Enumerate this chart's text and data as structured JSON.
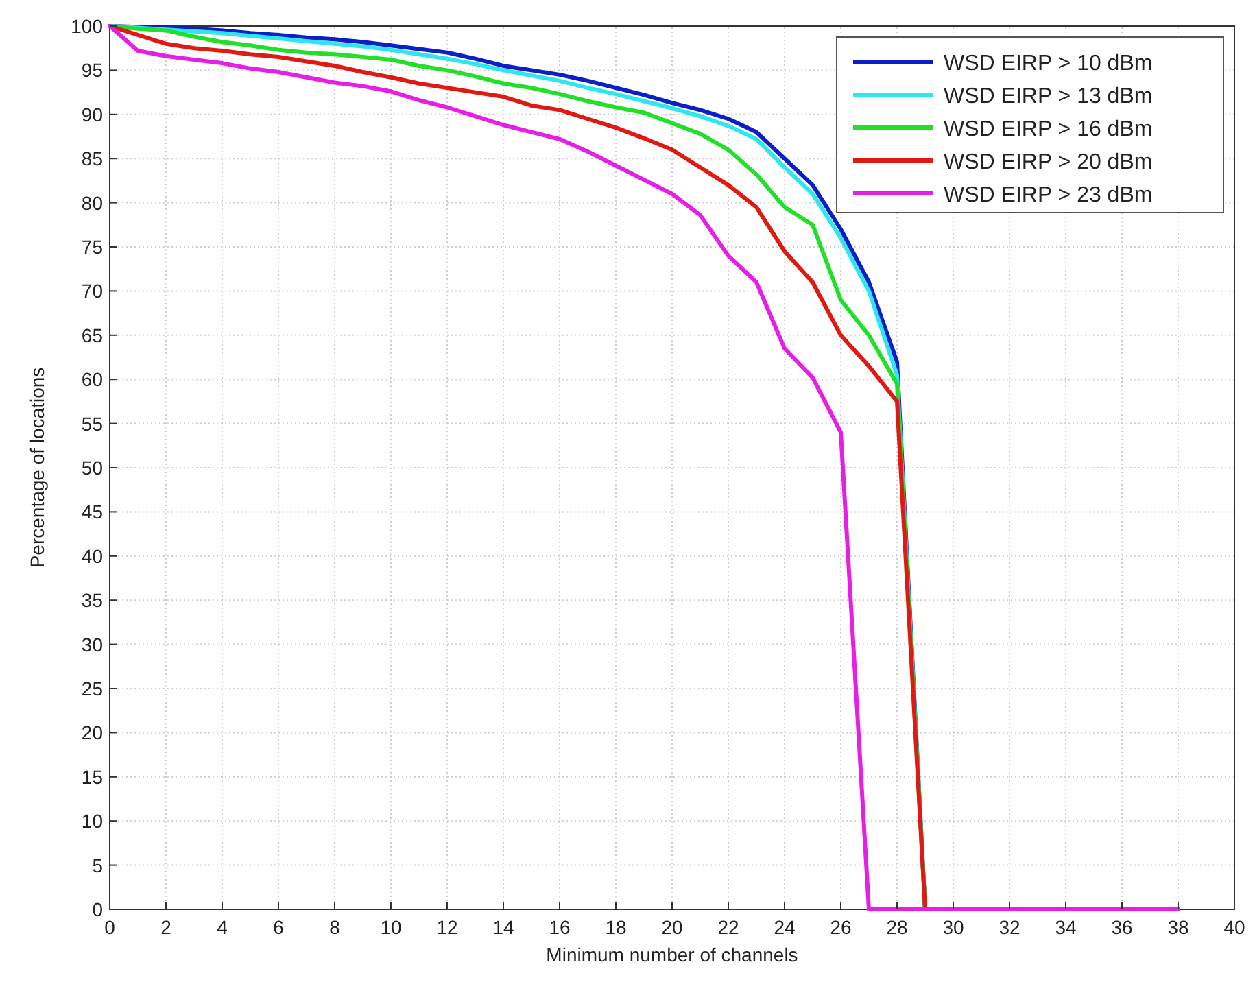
{
  "chart_data": {
    "type": "line",
    "xlabel": "Minimum number of channels",
    "ylabel": "Percentage of locations",
    "xlim": [
      0,
      40
    ],
    "ylim": [
      0,
      100
    ],
    "xticks": [
      0,
      2,
      4,
      6,
      8,
      10,
      12,
      14,
      16,
      18,
      20,
      22,
      24,
      26,
      28,
      30,
      32,
      34,
      36,
      38,
      40
    ],
    "yticks": [
      0,
      5,
      10,
      15,
      20,
      25,
      30,
      35,
      40,
      45,
      50,
      55,
      60,
      65,
      70,
      75,
      80,
      85,
      90,
      95,
      100
    ],
    "grid": true,
    "legend": "top right",
    "marker": "none",
    "line_style": "solid",
    "series": [
      {
        "name": "WSD EIRP > 10 dBm",
        "color": "#0a1fc8",
        "x": [
          0,
          1,
          2,
          3,
          4,
          5,
          6,
          7,
          8,
          9,
          10,
          11,
          12,
          13,
          14,
          15,
          16,
          17,
          18,
          19,
          20,
          21,
          22,
          23,
          24,
          25,
          26,
          27,
          28,
          29,
          38
        ],
        "values": [
          100,
          99.9,
          99.8,
          99.7,
          99.5,
          99.2,
          99,
          98.7,
          98.5,
          98.2,
          97.8,
          97.4,
          97,
          96.3,
          95.5,
          95,
          94.5,
          93.8,
          93,
          92.2,
          91.3,
          90.5,
          89.5,
          88,
          85,
          82,
          77,
          71,
          62,
          0,
          0
        ]
      },
      {
        "name": "WSD EIRP > 13 dBm",
        "color": "#2ee6f0",
        "x": [
          0,
          1,
          2,
          3,
          4,
          5,
          6,
          7,
          8,
          9,
          10,
          11,
          12,
          13,
          14,
          15,
          16,
          17,
          18,
          19,
          20,
          21,
          22,
          23,
          24,
          25,
          26,
          27,
          28,
          29,
          38
        ],
        "values": [
          100,
          99.8,
          99.6,
          99.4,
          99.2,
          98.9,
          98.6,
          98.3,
          98,
          97.7,
          97.3,
          96.8,
          96.3,
          95.7,
          95,
          94.4,
          93.8,
          93,
          92.3,
          91.5,
          90.7,
          89.8,
          88.7,
          87.2,
          84,
          81,
          76,
          70,
          60.5,
          0,
          0
        ]
      },
      {
        "name": "WSD EIRP > 16 dBm",
        "color": "#22e02a",
        "x": [
          0,
          1,
          2,
          3,
          4,
          5,
          6,
          7,
          8,
          9,
          10,
          11,
          12,
          13,
          14,
          15,
          16,
          17,
          18,
          19,
          20,
          21,
          22,
          23,
          24,
          25,
          26,
          27,
          28,
          29,
          38
        ],
        "values": [
          100,
          99.7,
          99.5,
          98.8,
          98.2,
          97.8,
          97.3,
          97,
          96.8,
          96.5,
          96.2,
          95.5,
          95,
          94.3,
          93.5,
          93,
          92.3,
          91.5,
          90.8,
          90.2,
          89,
          87.8,
          86,
          83.2,
          79.5,
          77.5,
          69,
          65,
          59.5,
          0,
          0
        ]
      },
      {
        "name": "WSD EIRP > 20 dBm",
        "color": "#e01a12",
        "x": [
          0,
          1,
          2,
          3,
          4,
          5,
          6,
          7,
          8,
          9,
          10,
          11,
          12,
          13,
          14,
          15,
          16,
          17,
          18,
          19,
          20,
          21,
          22,
          23,
          24,
          25,
          26,
          27,
          28,
          29,
          38
        ],
        "values": [
          100,
          99,
          98,
          97.5,
          97.2,
          96.8,
          96.5,
          96,
          95.5,
          94.8,
          94.2,
          93.5,
          93,
          92.5,
          92,
          91,
          90.5,
          89.5,
          88.5,
          87.3,
          86,
          84,
          82,
          79.5,
          74.5,
          71,
          65,
          61.5,
          57.5,
          0,
          0
        ]
      },
      {
        "name": "WSD EIRP > 23 dBm",
        "color": "#e61ee6",
        "x": [
          0,
          1,
          2,
          3,
          4,
          5,
          6,
          7,
          8,
          9,
          10,
          11,
          12,
          13,
          14,
          15,
          16,
          17,
          18,
          19,
          20,
          21,
          22,
          23,
          24,
          25,
          26,
          27,
          38
        ],
        "values": [
          100,
          97.2,
          96.6,
          96.2,
          95.8,
          95.2,
          94.8,
          94.2,
          93.6,
          93.2,
          92.6,
          91.6,
          90.8,
          89.8,
          88.8,
          88,
          87.2,
          85.8,
          84.2,
          82.6,
          81,
          78.6,
          74,
          71,
          63.5,
          60.2,
          54,
          0,
          0
        ]
      }
    ]
  }
}
